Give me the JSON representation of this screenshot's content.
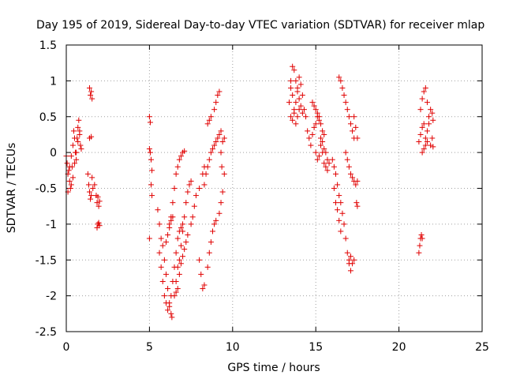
{
  "chart_data": {
    "type": "scatter",
    "title": "Day 195 of 2019, Sidereal Day-to-day VTEC variation (SDTVAR) for receiver mlap",
    "xlabel": "GPS time / hours",
    "ylabel": "SDTVAR / TECUs",
    "xlim": [
      0,
      25
    ],
    "ylim": [
      -2.5,
      1.5
    ],
    "xticks": [
      0,
      5,
      10,
      15,
      20,
      25
    ],
    "xtick_labels": [
      "0",
      "5",
      "10",
      "15",
      "20",
      "25"
    ],
    "yticks": [
      -2.5,
      -2,
      -1.5,
      -1,
      -0.5,
      0,
      0.5,
      1,
      1.5
    ],
    "ytick_labels": [
      "-2.5",
      "-2",
      "-1.5",
      "-1",
      "-0.5",
      "0",
      "0.5",
      "1",
      "1.5"
    ],
    "grid": true,
    "marker": "+",
    "color": "#e00000",
    "series": [
      {
        "name": "SDTVAR",
        "points": [
          [
            0.0,
            -0.05
          ],
          [
            0.05,
            -0.15
          ],
          [
            0.1,
            -0.3
          ],
          [
            0.15,
            -0.25
          ],
          [
            0.2,
            -0.4
          ],
          [
            0.25,
            -0.5
          ],
          [
            0.3,
            -0.45
          ],
          [
            0.35,
            -0.2
          ],
          [
            0.4,
            0.1
          ],
          [
            0.45,
            0.3
          ],
          [
            0.5,
            0.2
          ],
          [
            0.55,
            0.0
          ],
          [
            0.6,
            -0.1
          ],
          [
            0.65,
            0.2
          ],
          [
            0.7,
            0.35
          ],
          [
            0.75,
            0.45
          ],
          [
            0.8,
            0.3
          ],
          [
            0.85,
            0.1
          ],
          [
            0.1,
            -0.55
          ],
          [
            0.2,
            -0.2
          ],
          [
            0.3,
            -0.05
          ],
          [
            0.4,
            -0.35
          ],
          [
            0.5,
            -0.15
          ],
          [
            0.6,
            0.0
          ],
          [
            0.7,
            0.15
          ],
          [
            0.8,
            0.25
          ],
          [
            0.9,
            0.05
          ],
          [
            1.4,
            0.9
          ],
          [
            1.45,
            0.8
          ],
          [
            1.5,
            0.85
          ],
          [
            1.55,
            0.75
          ],
          [
            1.4,
            0.2
          ],
          [
            1.5,
            0.22
          ],
          [
            1.3,
            -0.3
          ],
          [
            1.35,
            -0.45
          ],
          [
            1.4,
            -0.55
          ],
          [
            1.45,
            -0.65
          ],
          [
            1.5,
            -0.6
          ],
          [
            1.55,
            -0.35
          ],
          [
            1.6,
            -0.5
          ],
          [
            1.7,
            -0.45
          ],
          [
            1.8,
            -0.6
          ],
          [
            1.85,
            -0.7
          ],
          [
            1.9,
            -0.62
          ],
          [
            1.95,
            -0.75
          ],
          [
            2.0,
            -0.68
          ],
          [
            1.85,
            -1.05
          ],
          [
            1.9,
            -1.0
          ],
          [
            1.95,
            -0.98
          ],
          [
            2.0,
            -1.02
          ],
          [
            5.0,
            0.5
          ],
          [
            5.05,
            0.42
          ],
          [
            5.0,
            0.05
          ],
          [
            5.05,
            0.0
          ],
          [
            5.1,
            -0.1
          ],
          [
            5.15,
            -0.25
          ],
          [
            5.1,
            -0.45
          ],
          [
            5.15,
            -0.6
          ],
          [
            5.0,
            -1.2
          ],
          [
            5.5,
            -0.8
          ],
          [
            5.6,
            -1.0
          ],
          [
            5.7,
            -1.2
          ],
          [
            5.8,
            -1.3
          ],
          [
            5.9,
            -1.5
          ],
          [
            6.0,
            -1.7
          ],
          [
            6.1,
            -1.9
          ],
          [
            6.2,
            -2.1
          ],
          [
            6.3,
            -2.25
          ],
          [
            6.35,
            -2.3
          ],
          [
            5.6,
            -1.4
          ],
          [
            5.7,
            -1.6
          ],
          [
            5.8,
            -1.8
          ],
          [
            5.9,
            -2.0
          ],
          [
            6.0,
            -2.1
          ],
          [
            6.1,
            -2.2
          ],
          [
            6.2,
            -2.15
          ],
          [
            6.3,
            -2.0
          ],
          [
            6.4,
            -1.8
          ],
          [
            6.5,
            -1.6
          ],
          [
            6.6,
            -1.4
          ],
          [
            6.7,
            -1.2
          ],
          [
            6.8,
            -1.1
          ],
          [
            6.9,
            -1.05
          ],
          [
            7.0,
            -1.0
          ],
          [
            6.2,
            -1.0
          ],
          [
            6.3,
            -0.9
          ],
          [
            6.4,
            -0.7
          ],
          [
            6.5,
            -0.5
          ],
          [
            6.6,
            -0.3
          ],
          [
            6.7,
            -0.2
          ],
          [
            6.8,
            -0.1
          ],
          [
            6.9,
            -0.05
          ],
          [
            7.0,
            0.0
          ],
          [
            7.1,
            0.02
          ],
          [
            6.6,
            -1.8
          ],
          [
            6.7,
            -1.6
          ],
          [
            6.8,
            -1.5
          ],
          [
            6.9,
            -1.3
          ],
          [
            7.0,
            -1.1
          ],
          [
            7.1,
            -0.9
          ],
          [
            7.2,
            -0.7
          ],
          [
            7.3,
            -0.55
          ],
          [
            7.4,
            -0.45
          ],
          [
            7.5,
            -0.4
          ],
          [
            6.5,
            -2.0
          ],
          [
            6.6,
            -1.95
          ],
          [
            6.7,
            -1.9
          ],
          [
            6.8,
            -1.7
          ],
          [
            6.9,
            -1.55
          ],
          [
            7.0,
            -1.45
          ],
          [
            7.1,
            -1.35
          ],
          [
            7.2,
            -1.25
          ],
          [
            7.3,
            -1.15
          ],
          [
            6.0,
            -1.25
          ],
          [
            6.1,
            -1.15
          ],
          [
            6.2,
            -1.05
          ],
          [
            6.3,
            -0.95
          ],
          [
            6.4,
            -0.9
          ],
          [
            7.5,
            -1.0
          ],
          [
            7.6,
            -0.9
          ],
          [
            7.7,
            -0.75
          ],
          [
            7.8,
            -0.6
          ],
          [
            8.0,
            -0.5
          ],
          [
            8.2,
            -0.3
          ],
          [
            8.3,
            -0.2
          ],
          [
            8.0,
            -1.5
          ],
          [
            8.1,
            -1.7
          ],
          [
            8.2,
            -1.9
          ],
          [
            8.3,
            -1.85
          ],
          [
            8.5,
            -1.6
          ],
          [
            8.6,
            -1.4
          ],
          [
            8.7,
            -1.25
          ],
          [
            8.8,
            -1.1
          ],
          [
            8.9,
            -1.0
          ],
          [
            9.0,
            -0.95
          ],
          [
            8.3,
            -0.45
          ],
          [
            8.4,
            -0.3
          ],
          [
            8.5,
            -0.2
          ],
          [
            8.6,
            -0.1
          ],
          [
            8.7,
            0.0
          ],
          [
            8.8,
            0.05
          ],
          [
            8.9,
            0.1
          ],
          [
            9.0,
            0.15
          ],
          [
            9.1,
            0.2
          ],
          [
            9.2,
            0.25
          ],
          [
            9.3,
            0.3
          ],
          [
            8.5,
            0.4
          ],
          [
            8.6,
            0.45
          ],
          [
            8.7,
            0.5
          ],
          [
            8.9,
            0.6
          ],
          [
            9.0,
            0.7
          ],
          [
            9.1,
            0.8
          ],
          [
            9.2,
            0.85
          ],
          [
            9.2,
            -0.85
          ],
          [
            9.3,
            -0.7
          ],
          [
            9.4,
            -0.55
          ],
          [
            9.5,
            -0.3
          ],
          [
            9.3,
            0.0
          ],
          [
            9.4,
            0.15
          ],
          [
            9.5,
            0.2
          ],
          [
            9.35,
            -0.2
          ],
          [
            13.4,
            0.7
          ],
          [
            13.5,
            0.9
          ],
          [
            13.6,
            1.2
          ],
          [
            13.7,
            1.15
          ],
          [
            13.8,
            1.0
          ],
          [
            13.9,
            0.85
          ],
          [
            14.0,
            0.75
          ],
          [
            14.1,
            0.65
          ],
          [
            14.2,
            0.55
          ],
          [
            13.5,
            1.0
          ],
          [
            13.6,
            0.8
          ],
          [
            13.7,
            0.6
          ],
          [
            13.8,
            0.7
          ],
          [
            13.9,
            0.9
          ],
          [
            14.0,
            1.05
          ],
          [
            14.1,
            0.95
          ],
          [
            14.2,
            0.8
          ],
          [
            14.3,
            0.6
          ],
          [
            14.4,
            0.5
          ],
          [
            13.5,
            0.5
          ],
          [
            13.6,
            0.45
          ],
          [
            13.7,
            0.55
          ],
          [
            13.8,
            0.4
          ],
          [
            13.9,
            0.5
          ],
          [
            14.0,
            0.6
          ],
          [
            14.5,
            0.3
          ],
          [
            14.6,
            0.2
          ],
          [
            14.7,
            0.1
          ],
          [
            14.8,
            0.25
          ],
          [
            14.9,
            0.35
          ],
          [
            15.0,
            0.4
          ],
          [
            15.1,
            0.5
          ],
          [
            15.2,
            0.45
          ],
          [
            15.3,
            0.4
          ],
          [
            15.4,
            0.3
          ],
          [
            15.5,
            0.25
          ],
          [
            14.8,
            0.7
          ],
          [
            14.9,
            0.65
          ],
          [
            15.0,
            0.6
          ],
          [
            15.1,
            0.55
          ],
          [
            15.2,
            0.5
          ],
          [
            15.0,
            0.0
          ],
          [
            15.1,
            -0.1
          ],
          [
            15.2,
            -0.05
          ],
          [
            15.3,
            0.1
          ],
          [
            15.4,
            0.0
          ],
          [
            15.5,
            -0.15
          ],
          [
            15.6,
            -0.2
          ],
          [
            15.7,
            -0.25
          ],
          [
            15.3,
            0.2
          ],
          [
            15.4,
            0.15
          ],
          [
            15.5,
            0.05
          ],
          [
            15.6,
            0.0
          ],
          [
            15.7,
            -0.1
          ],
          [
            15.8,
            -0.15
          ],
          [
            16.0,
            -0.1
          ],
          [
            16.1,
            -0.2
          ],
          [
            16.2,
            -0.3
          ],
          [
            16.3,
            -0.45
          ],
          [
            16.4,
            -0.6
          ],
          [
            16.5,
            -0.7
          ],
          [
            16.6,
            -0.85
          ],
          [
            16.7,
            -1.0
          ],
          [
            16.8,
            -1.2
          ],
          [
            16.9,
            -1.4
          ],
          [
            17.0,
            -1.55
          ],
          [
            17.1,
            -1.65
          ],
          [
            16.1,
            -0.5
          ],
          [
            16.2,
            -0.7
          ],
          [
            16.3,
            -0.8
          ],
          [
            16.4,
            -0.95
          ],
          [
            16.5,
            -1.1
          ],
          [
            16.4,
            1.05
          ],
          [
            16.5,
            1.0
          ],
          [
            16.6,
            0.9
          ],
          [
            16.7,
            0.8
          ],
          [
            16.8,
            0.7
          ],
          [
            16.9,
            0.6
          ],
          [
            17.0,
            0.5
          ],
          [
            17.1,
            0.4
          ],
          [
            17.2,
            0.3
          ],
          [
            17.3,
            0.2
          ],
          [
            16.8,
            0.0
          ],
          [
            16.9,
            -0.1
          ],
          [
            17.0,
            -0.2
          ],
          [
            17.1,
            -0.3
          ],
          [
            17.2,
            -0.35
          ],
          [
            17.3,
            -0.4
          ],
          [
            17.4,
            -0.45
          ],
          [
            17.5,
            -0.4
          ],
          [
            17.3,
            0.5
          ],
          [
            17.4,
            0.35
          ],
          [
            17.5,
            0.2
          ],
          [
            17.45,
            -0.7
          ],
          [
            17.5,
            -0.75
          ],
          [
            17.0,
            -1.5
          ],
          [
            17.1,
            -1.45
          ],
          [
            17.2,
            -1.55
          ],
          [
            17.3,
            -1.5
          ],
          [
            21.2,
            -1.4
          ],
          [
            21.25,
            -1.3
          ],
          [
            21.3,
            -1.2
          ],
          [
            21.35,
            -1.15
          ],
          [
            21.4,
            -1.2
          ],
          [
            21.2,
            0.15
          ],
          [
            21.3,
            0.25
          ],
          [
            21.4,
            0.35
          ],
          [
            21.5,
            0.4
          ],
          [
            21.6,
            0.2
          ],
          [
            21.7,
            0.3
          ],
          [
            21.8,
            0.5
          ],
          [
            21.9,
            0.6
          ],
          [
            22.0,
            0.55
          ],
          [
            22.05,
            0.45
          ],
          [
            21.3,
            0.6
          ],
          [
            21.4,
            0.75
          ],
          [
            21.5,
            0.85
          ],
          [
            21.6,
            0.9
          ],
          [
            21.7,
            0.7
          ],
          [
            21.8,
            0.4
          ],
          [
            21.9,
            0.1
          ],
          [
            22.0,
            0.2
          ],
          [
            22.05,
            0.08
          ],
          [
            21.4,
            0.0
          ],
          [
            21.5,
            0.05
          ],
          [
            21.6,
            0.1
          ],
          [
            21.7,
            0.15
          ]
        ]
      }
    ]
  }
}
